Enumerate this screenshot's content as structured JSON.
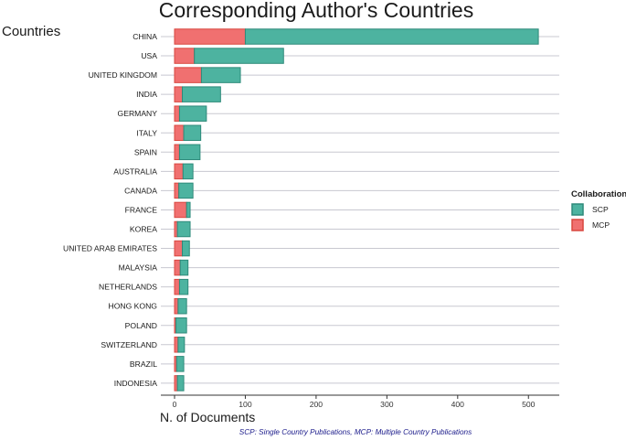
{
  "chart_data": {
    "type": "bar",
    "orientation": "horizontal",
    "stacked": true,
    "title": "Corresponding Author's Countries",
    "ylabel": "Countries",
    "xlabel": "N. of Documents",
    "caption": "SCP: Single Country Publications, MCP: Multiple Country Publications",
    "categories": [
      "CHINA",
      "USA",
      "UNITED KINGDOM",
      "INDIA",
      "GERMANY",
      "ITALY",
      "SPAIN",
      "AUSTRALIA",
      "CANADA",
      "FRANCE",
      "KOREA",
      "UNITED ARAB EMIRATES",
      "MALAYSIA",
      "NETHERLANDS",
      "HONG KONG",
      "POLAND",
      "SWITZERLAND",
      "BRAZIL",
      "INDONESIA"
    ],
    "series": [
      {
        "name": "MCP",
        "color": "#f07070",
        "values": [
          100,
          28,
          38,
          11,
          7,
          13,
          7,
          12,
          6,
          17,
          4,
          11,
          8,
          7,
          5,
          2,
          5,
          3,
          4
        ]
      },
      {
        "name": "SCP",
        "color": "#4db3a0",
        "values": [
          414,
          126,
          55,
          54,
          38,
          24,
          29,
          14,
          20,
          5,
          18,
          10,
          11,
          12,
          12,
          15,
          9,
          10,
          9
        ]
      }
    ],
    "legend": {
      "title": "Collaboration",
      "entries": [
        "SCP",
        "MCP"
      ],
      "position": "right"
    },
    "xticks": [
      0,
      100,
      200,
      300,
      400,
      500
    ],
    "xlim": [
      -10,
      535
    ],
    "grid": true
  }
}
